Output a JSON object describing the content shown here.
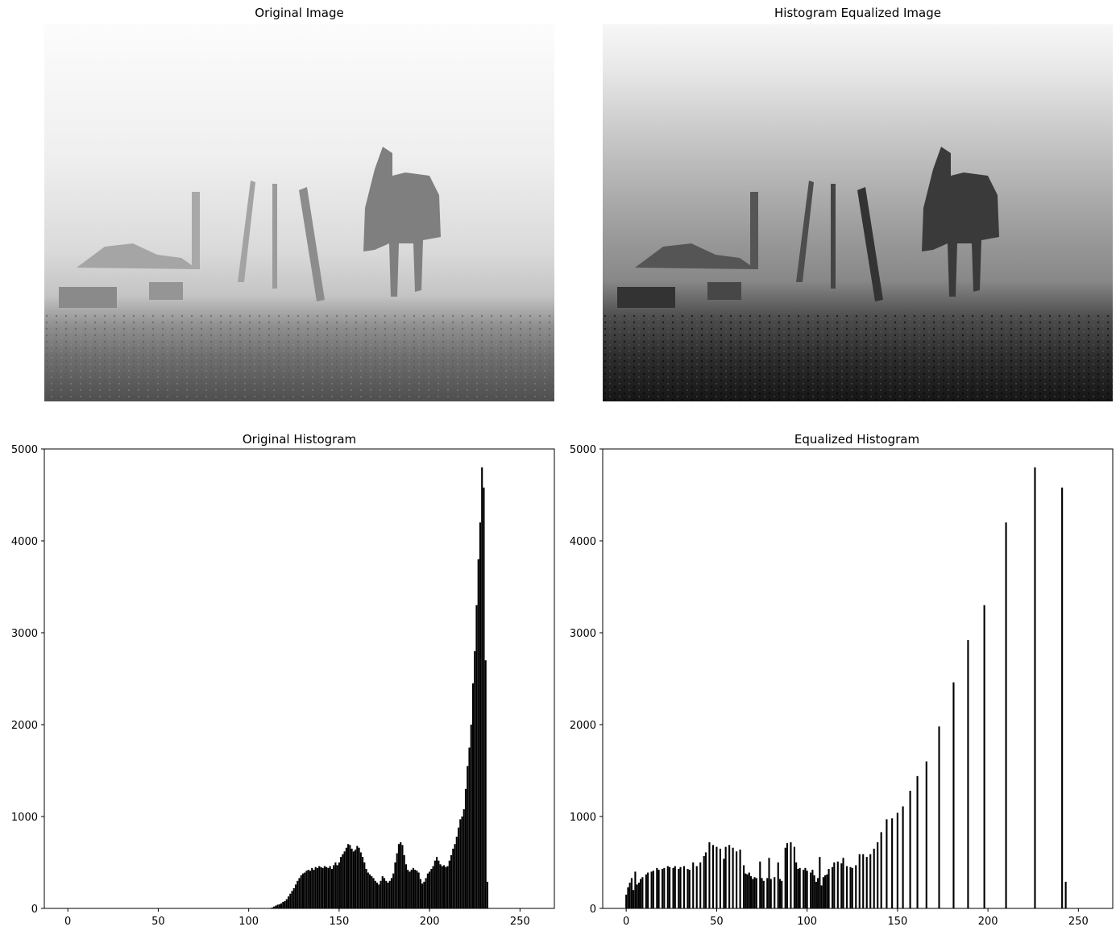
{
  "panels": {
    "original_image": {
      "title": "Original Image"
    },
    "equalized_image": {
      "title": "Histogram Equalized Image"
    }
  },
  "chart_data": [
    {
      "type": "bar",
      "title": "Original Histogram",
      "xlabel": "",
      "ylabel": "",
      "xlim": [
        -13,
        269
      ],
      "ylim": [
        0,
        5000
      ],
      "xticks": [
        0,
        50,
        100,
        150,
        200,
        250
      ],
      "yticks": [
        0,
        1000,
        2000,
        3000,
        4000,
        5000
      ],
      "grid": false,
      "bins": [
        [
          112,
          5
        ],
        [
          113,
          10
        ],
        [
          114,
          20
        ],
        [
          115,
          30
        ],
        [
          116,
          40
        ],
        [
          117,
          45
        ],
        [
          118,
          55
        ],
        [
          119,
          70
        ],
        [
          120,
          80
        ],
        [
          121,
          100
        ],
        [
          122,
          130
        ],
        [
          123,
          160
        ],
        [
          124,
          190
        ],
        [
          125,
          220
        ],
        [
          126,
          260
        ],
        [
          127,
          300
        ],
        [
          128,
          330
        ],
        [
          129,
          360
        ],
        [
          130,
          380
        ],
        [
          131,
          390
        ],
        [
          132,
          410
        ],
        [
          133,
          420
        ],
        [
          134,
          410
        ],
        [
          135,
          440
        ],
        [
          136,
          420
        ],
        [
          137,
          450
        ],
        [
          138,
          440
        ],
        [
          139,
          460
        ],
        [
          140,
          450
        ],
        [
          141,
          440
        ],
        [
          142,
          460
        ],
        [
          143,
          450
        ],
        [
          144,
          440
        ],
        [
          145,
          460
        ],
        [
          146,
          430
        ],
        [
          147,
          470
        ],
        [
          148,
          500
        ],
        [
          149,
          470
        ],
        [
          150,
          500
        ],
        [
          151,
          560
        ],
        [
          152,
          590
        ],
        [
          153,
          620
        ],
        [
          154,
          660
        ],
        [
          155,
          700
        ],
        [
          156,
          690
        ],
        [
          157,
          650
        ],
        [
          158,
          620
        ],
        [
          159,
          640
        ],
        [
          160,
          680
        ],
        [
          161,
          660
        ],
        [
          162,
          610
        ],
        [
          163,
          560
        ],
        [
          164,
          500
        ],
        [
          165,
          430
        ],
        [
          166,
          390
        ],
        [
          167,
          370
        ],
        [
          168,
          350
        ],
        [
          169,
          330
        ],
        [
          170,
          300
        ],
        [
          171,
          280
        ],
        [
          172,
          260
        ],
        [
          173,
          300
        ],
        [
          174,
          350
        ],
        [
          175,
          330
        ],
        [
          176,
          300
        ],
        [
          177,
          280
        ],
        [
          178,
          300
        ],
        [
          179,
          330
        ],
        [
          180,
          380
        ],
        [
          181,
          500
        ],
        [
          182,
          600
        ],
        [
          183,
          700
        ],
        [
          184,
          720
        ],
        [
          185,
          690
        ],
        [
          186,
          580
        ],
        [
          187,
          480
        ],
        [
          188,
          420
        ],
        [
          189,
          400
        ],
        [
          190,
          420
        ],
        [
          191,
          440
        ],
        [
          192,
          420
        ],
        [
          193,
          410
        ],
        [
          194,
          390
        ],
        [
          195,
          320
        ],
        [
          196,
          270
        ],
        [
          197,
          290
        ],
        [
          198,
          330
        ],
        [
          199,
          380
        ],
        [
          200,
          400
        ],
        [
          201,
          430
        ],
        [
          202,
          460
        ],
        [
          203,
          520
        ],
        [
          204,
          560
        ],
        [
          205,
          520
        ],
        [
          206,
          480
        ],
        [
          207,
          460
        ],
        [
          208,
          470
        ],
        [
          209,
          450
        ],
        [
          210,
          460
        ],
        [
          211,
          520
        ],
        [
          212,
          580
        ],
        [
          213,
          650
        ],
        [
          214,
          700
        ],
        [
          215,
          780
        ],
        [
          216,
          880
        ],
        [
          217,
          970
        ],
        [
          218,
          1000
        ],
        [
          219,
          1080
        ],
        [
          220,
          1300
        ],
        [
          221,
          1550
        ],
        [
          222,
          1750
        ],
        [
          223,
          2000
        ],
        [
          224,
          2450
        ],
        [
          225,
          2800
        ],
        [
          226,
          3300
        ],
        [
          227,
          3800
        ],
        [
          228,
          4200
        ],
        [
          229,
          4800
        ],
        [
          230,
          4580
        ],
        [
          231,
          2700
        ],
        [
          232,
          290
        ]
      ]
    },
    {
      "type": "bar",
      "title": "Equalized Histogram",
      "xlabel": "",
      "ylabel": "",
      "xlim": [
        -13,
        269
      ],
      "ylim": [
        0,
        5000
      ],
      "xticks": [
        0,
        50,
        100,
        150,
        200,
        250
      ],
      "yticks": [
        0,
        1000,
        2000,
        3000,
        4000,
        5000
      ],
      "grid": false,
      "bins": [
        [
          0,
          150
        ],
        [
          1,
          230
        ],
        [
          2,
          280
        ],
        [
          3,
          330
        ],
        [
          4,
          200
        ],
        [
          5,
          400
        ],
        [
          6,
          260
        ],
        [
          7,
          280
        ],
        [
          8,
          320
        ],
        [
          9,
          340
        ],
        [
          11,
          370
        ],
        [
          12,
          390
        ],
        [
          14,
          400
        ],
        [
          15,
          410
        ],
        [
          17,
          440
        ],
        [
          18,
          420
        ],
        [
          20,
          430
        ],
        [
          21,
          440
        ],
        [
          23,
          460
        ],
        [
          24,
          450
        ],
        [
          26,
          440
        ],
        [
          27,
          460
        ],
        [
          29,
          430
        ],
        [
          30,
          450
        ],
        [
          32,
          460
        ],
        [
          34,
          430
        ],
        [
          35,
          420
        ],
        [
          37,
          500
        ],
        [
          39,
          460
        ],
        [
          41,
          500
        ],
        [
          43,
          570
        ],
        [
          44,
          610
        ],
        [
          46,
          720
        ],
        [
          48,
          690
        ],
        [
          50,
          670
        ],
        [
          52,
          650
        ],
        [
          54,
          540
        ],
        [
          55,
          670
        ],
        [
          57,
          690
        ],
        [
          59,
          660
        ],
        [
          61,
          620
        ],
        [
          63,
          640
        ],
        [
          65,
          470
        ],
        [
          66,
          380
        ],
        [
          67,
          370
        ],
        [
          68,
          390
        ],
        [
          69,
          350
        ],
        [
          70,
          320
        ],
        [
          71,
          340
        ],
        [
          72,
          330
        ],
        [
          74,
          510
        ],
        [
          75,
          330
        ],
        [
          76,
          300
        ],
        [
          78,
          330
        ],
        [
          79,
          550
        ],
        [
          80,
          320
        ],
        [
          82,
          340
        ],
        [
          84,
          500
        ],
        [
          85,
          320
        ],
        [
          86,
          300
        ],
        [
          88,
          660
        ],
        [
          89,
          710
        ],
        [
          91,
          720
        ],
        [
          93,
          670
        ],
        [
          94,
          500
        ],
        [
          95,
          430
        ],
        [
          96,
          440
        ],
        [
          98,
          420
        ],
        [
          99,
          440
        ],
        [
          100,
          410
        ],
        [
          102,
          390
        ],
        [
          103,
          420
        ],
        [
          104,
          360
        ],
        [
          105,
          290
        ],
        [
          106,
          330
        ],
        [
          107,
          560
        ],
        [
          108,
          250
        ],
        [
          109,
          340
        ],
        [
          110,
          360
        ],
        [
          111,
          370
        ],
        [
          112,
          430
        ],
        [
          114,
          450
        ],
        [
          115,
          500
        ],
        [
          117,
          510
        ],
        [
          119,
          490
        ],
        [
          120,
          550
        ],
        [
          122,
          460
        ],
        [
          124,
          450
        ],
        [
          125,
          440
        ],
        [
          127,
          470
        ],
        [
          129,
          590
        ],
        [
          131,
          590
        ],
        [
          133,
          560
        ],
        [
          135,
          590
        ],
        [
          137,
          650
        ],
        [
          139,
          720
        ],
        [
          141,
          830
        ],
        [
          144,
          970
        ],
        [
          147,
          980
        ],
        [
          150,
          1040
        ],
        [
          153,
          1110
        ],
        [
          157,
          1280
        ],
        [
          161,
          1440
        ],
        [
          166,
          1600
        ],
        [
          173,
          1980
        ],
        [
          181,
          2460
        ],
        [
          189,
          2920
        ],
        [
          198,
          3300
        ],
        [
          210,
          4200
        ],
        [
          226,
          4800
        ],
        [
          241,
          4580
        ],
        [
          243,
          290
        ]
      ]
    }
  ]
}
